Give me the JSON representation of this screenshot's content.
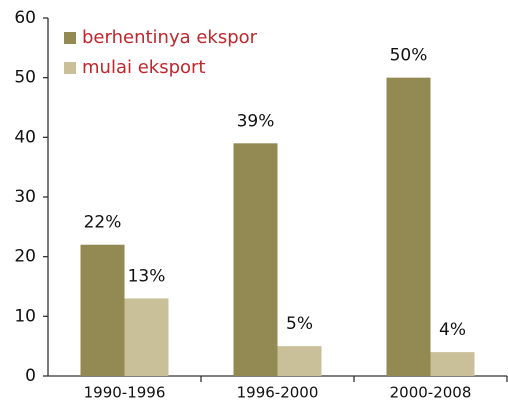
{
  "chart_data": {
    "type": "bar",
    "categories": [
      "1990-1996",
      "1996-2000",
      "2000-2008"
    ],
    "series": [
      {
        "name": "berhentinya ekspor",
        "color": "#938953",
        "values": [
          22,
          39,
          50
        ],
        "value_labels": [
          "22%",
          "39%",
          "50%"
        ]
      },
      {
        "name": "mulai eksport",
        "color": "#c9bf99",
        "values": [
          13,
          5,
          4
        ],
        "value_labels": [
          "13%",
          "5%",
          "4%"
        ]
      }
    ],
    "ylim": [
      0,
      60
    ],
    "yticks": [
      0,
      10,
      20,
      30,
      40,
      50,
      60
    ],
    "grid": false,
    "legend": "top-left",
    "legend_text_color": "#c0272d"
  }
}
